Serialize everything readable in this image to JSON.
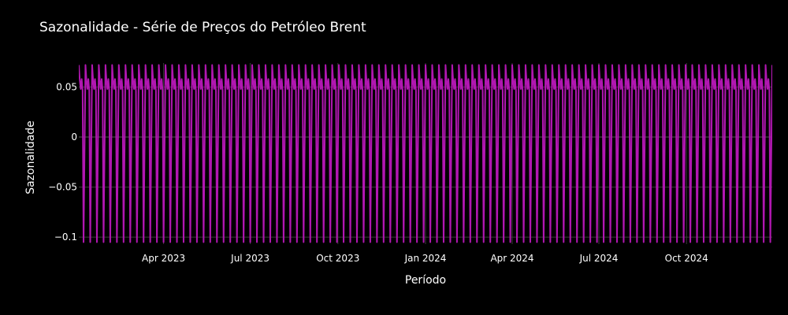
{
  "chart_data": {
    "type": "line",
    "title": "Sazonalidade - Série de Preços do Petróleo Brent",
    "xlabel": "Período",
    "ylabel": "Sazonalidade",
    "x_range": [
      "2023-01-02",
      "2024-12-30"
    ],
    "ylim": [
      -0.107,
      0.074
    ],
    "y_ticks": [
      {
        "value": 0.05,
        "label": "0.05"
      },
      {
        "value": 0,
        "label": "0"
      },
      {
        "value": -0.05,
        "label": "−0.05"
      },
      {
        "value": -0.1,
        "label": "−0.1"
      }
    ],
    "x_ticks": [
      {
        "date": "2023-04-01",
        "label": "Apr 2023"
      },
      {
        "date": "2023-07-01",
        "label": "Jul 2023"
      },
      {
        "date": "2023-10-01",
        "label": "Oct 2023"
      },
      {
        "date": "2024-01-01",
        "label": "Jan 2024"
      },
      {
        "date": "2024-04-01",
        "label": "Apr 2024"
      },
      {
        "date": "2024-07-01",
        "label": "Jul 2024"
      },
      {
        "date": "2024-10-01",
        "label": "Oct 2024"
      }
    ],
    "series": [
      {
        "weekly_pattern": [
          0.072,
          0.057,
          0.048,
          0.058,
          0.046,
          -0.105
        ],
        "frequency": "business-daily",
        "color": "#b117b1"
      }
    ],
    "grid": true,
    "background": "#000000",
    "grid_color": "#3a3a3a"
  }
}
